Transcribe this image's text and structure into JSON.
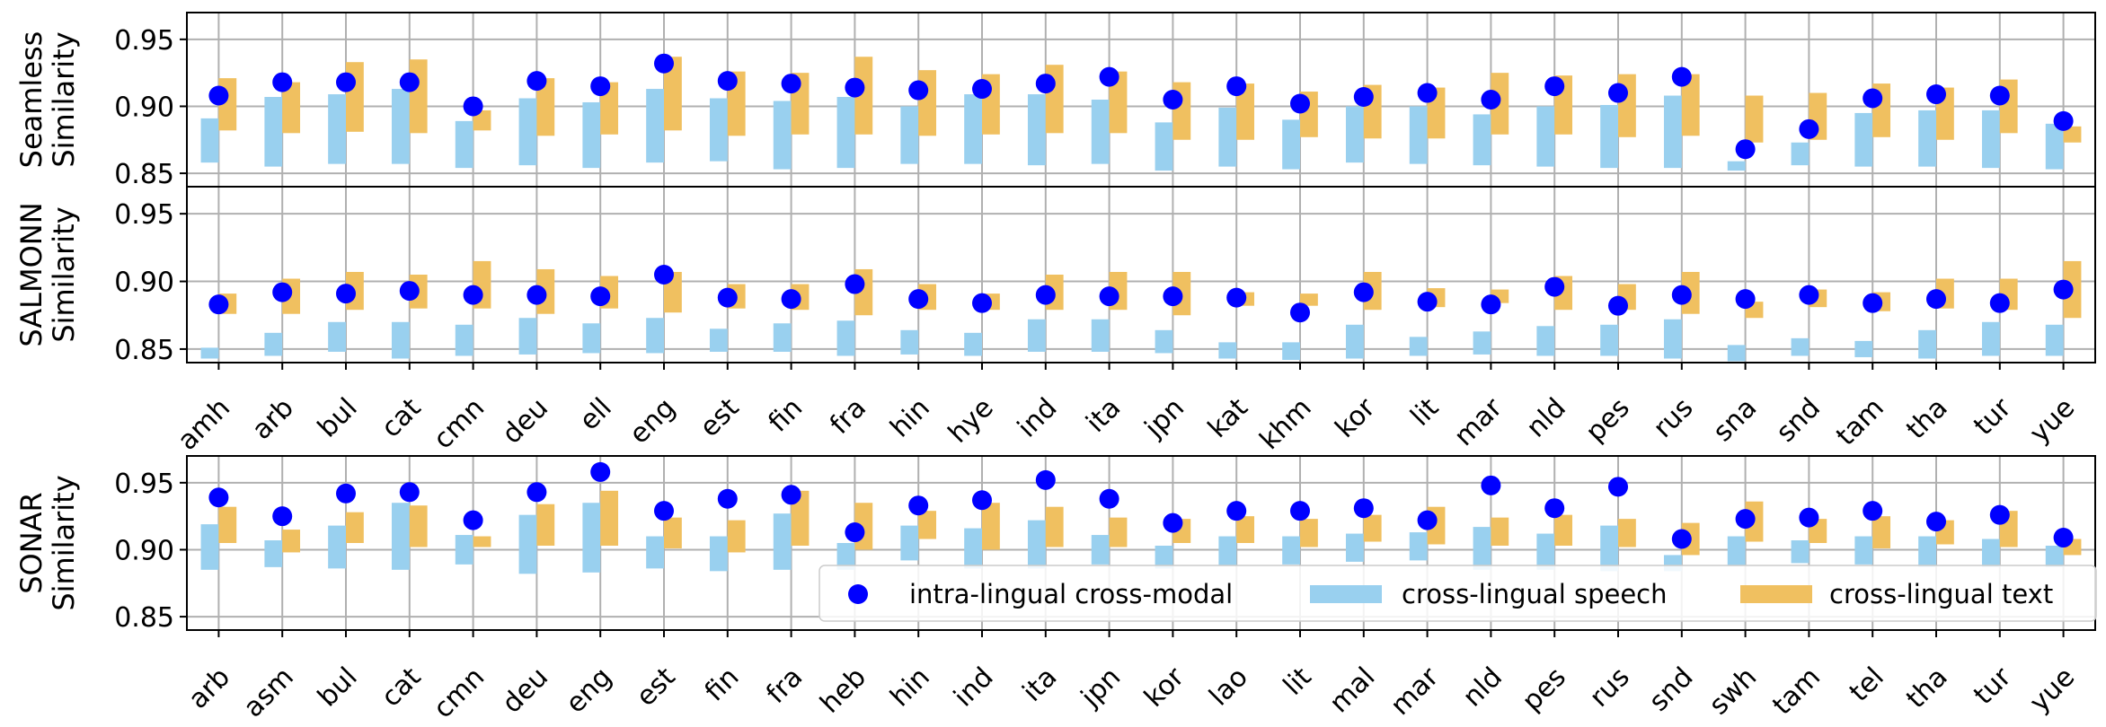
{
  "colors": {
    "dot": "#0000ff",
    "speech": "#99d0ef",
    "text": "#f0c060",
    "grid": "#b0b0b0"
  },
  "legend": {
    "dot_label": "intra-lingual cross-modal",
    "speech_label": "cross-lingual speech",
    "text_label": "cross-lingual text"
  },
  "chart_data": [
    {
      "type": "range-bar+scatter",
      "panel": "Seamless",
      "ylabel": [
        "Seamless",
        "Similarity"
      ],
      "ylim": [
        0.84,
        0.97
      ],
      "yticks": [
        "0.85",
        "0.90",
        "0.95"
      ],
      "categories": [
        "amh",
        "arb",
        "bul",
        "cat",
        "cmn",
        "deu",
        "ell",
        "eng",
        "est",
        "fin",
        "fra",
        "hin",
        "hye",
        "ind",
        "ita",
        "jpn",
        "kat",
        "khm",
        "kor",
        "lit",
        "mar",
        "nld",
        "pes",
        "rus",
        "sna",
        "snd",
        "tam",
        "tha",
        "tur",
        "yue"
      ],
      "intra_lingual_cross_modal": [
        0.908,
        0.918,
        0.918,
        0.918,
        0.9,
        0.919,
        0.915,
        0.932,
        0.919,
        0.917,
        0.914,
        0.912,
        0.913,
        0.917,
        0.922,
        0.905,
        0.915,
        0.902,
        0.907,
        0.91,
        0.905,
        0.915,
        0.91,
        0.922,
        0.868,
        0.883,
        0.906,
        0.909,
        0.908,
        0.889
      ],
      "cross_lingual_speech_range": [
        [
          0.858,
          0.891
        ],
        [
          0.855,
          0.907
        ],
        [
          0.857,
          0.909
        ],
        [
          0.857,
          0.913
        ],
        [
          0.854,
          0.889
        ],
        [
          0.856,
          0.906
        ],
        [
          0.854,
          0.903
        ],
        [
          0.858,
          0.913
        ],
        [
          0.859,
          0.906
        ],
        [
          0.853,
          0.904
        ],
        [
          0.854,
          0.907
        ],
        [
          0.857,
          0.9
        ],
        [
          0.857,
          0.909
        ],
        [
          0.856,
          0.909
        ],
        [
          0.857,
          0.905
        ],
        [
          0.852,
          0.888
        ],
        [
          0.855,
          0.899
        ],
        [
          0.853,
          0.89
        ],
        [
          0.858,
          0.9
        ],
        [
          0.857,
          0.9
        ],
        [
          0.856,
          0.894
        ],
        [
          0.855,
          0.9
        ],
        [
          0.854,
          0.901
        ],
        [
          0.854,
          0.908
        ],
        [
          0.852,
          0.859
        ],
        [
          0.856,
          0.873
        ],
        [
          0.855,
          0.895
        ],
        [
          0.855,
          0.897
        ],
        [
          0.854,
          0.897
        ],
        [
          0.853,
          0.887
        ]
      ],
      "cross_lingual_text_range": [
        [
          0.882,
          0.921
        ],
        [
          0.88,
          0.918
        ],
        [
          0.881,
          0.933
        ],
        [
          0.88,
          0.935
        ],
        [
          0.882,
          0.897
        ],
        [
          0.878,
          0.921
        ],
        [
          0.879,
          0.918
        ],
        [
          0.882,
          0.937
        ],
        [
          0.878,
          0.926
        ],
        [
          0.879,
          0.925
        ],
        [
          0.879,
          0.937
        ],
        [
          0.878,
          0.927
        ],
        [
          0.879,
          0.924
        ],
        [
          0.88,
          0.931
        ],
        [
          0.88,
          0.926
        ],
        [
          0.875,
          0.918
        ],
        [
          0.875,
          0.917
        ],
        [
          0.877,
          0.911
        ],
        [
          0.876,
          0.916
        ],
        [
          0.876,
          0.914
        ],
        [
          0.879,
          0.925
        ],
        [
          0.879,
          0.923
        ],
        [
          0.877,
          0.924
        ],
        [
          0.878,
          0.924
        ],
        [
          0.873,
          0.908
        ],
        [
          0.875,
          0.91
        ],
        [
          0.877,
          0.917
        ],
        [
          0.875,
          0.914
        ],
        [
          0.88,
          0.92
        ],
        [
          0.873,
          0.885
        ]
      ]
    },
    {
      "type": "range-bar+scatter",
      "panel": "SALMONN",
      "ylabel": [
        "SALMONN",
        "Similarity"
      ],
      "ylim": [
        0.84,
        0.97
      ],
      "yticks": [
        "0.85",
        "0.90",
        "0.95"
      ],
      "categories": [
        "amh",
        "arb",
        "bul",
        "cat",
        "cmn",
        "deu",
        "ell",
        "eng",
        "est",
        "fin",
        "fra",
        "hin",
        "hye",
        "ind",
        "ita",
        "jpn",
        "kat",
        "khm",
        "kor",
        "lit",
        "mar",
        "nld",
        "pes",
        "rus",
        "sna",
        "snd",
        "tam",
        "tha",
        "tur",
        "yue"
      ],
      "intra_lingual_cross_modal": [
        0.883,
        0.892,
        0.891,
        0.893,
        0.89,
        0.89,
        0.889,
        0.905,
        0.888,
        0.887,
        0.898,
        0.887,
        0.884,
        0.89,
        0.889,
        0.889,
        0.888,
        0.877,
        0.892,
        0.885,
        0.883,
        0.896,
        0.882,
        0.89,
        0.887,
        0.89,
        0.884,
        0.887,
        0.884,
        0.894
      ],
      "cross_lingual_speech_range": [
        [
          0.843,
          0.851
        ],
        [
          0.845,
          0.862
        ],
        [
          0.848,
          0.87
        ],
        [
          0.843,
          0.87
        ],
        [
          0.845,
          0.868
        ],
        [
          0.846,
          0.873
        ],
        [
          0.847,
          0.869
        ],
        [
          0.847,
          0.873
        ],
        [
          0.848,
          0.865
        ],
        [
          0.848,
          0.869
        ],
        [
          0.845,
          0.871
        ],
        [
          0.846,
          0.864
        ],
        [
          0.845,
          0.862
        ],
        [
          0.848,
          0.872
        ],
        [
          0.848,
          0.872
        ],
        [
          0.847,
          0.864
        ],
        [
          0.843,
          0.855
        ],
        [
          0.842,
          0.855
        ],
        [
          0.843,
          0.868
        ],
        [
          0.845,
          0.859
        ],
        [
          0.846,
          0.863
        ],
        [
          0.845,
          0.867
        ],
        [
          0.845,
          0.868
        ],
        [
          0.843,
          0.872
        ],
        [
          0.841,
          0.853
        ],
        [
          0.845,
          0.858
        ],
        [
          0.844,
          0.856
        ],
        [
          0.843,
          0.864
        ],
        [
          0.845,
          0.87
        ],
        [
          0.845,
          0.868
        ]
      ],
      "cross_lingual_text_range": [
        [
          0.876,
          0.891
        ],
        [
          0.876,
          0.902
        ],
        [
          0.879,
          0.907
        ],
        [
          0.88,
          0.905
        ],
        [
          0.88,
          0.915
        ],
        [
          0.876,
          0.909
        ],
        [
          0.88,
          0.904
        ],
        [
          0.877,
          0.907
        ],
        [
          0.88,
          0.898
        ],
        [
          0.879,
          0.898
        ],
        [
          0.875,
          0.909
        ],
        [
          0.879,
          0.898
        ],
        [
          0.879,
          0.891
        ],
        [
          0.879,
          0.905
        ],
        [
          0.879,
          0.907
        ],
        [
          0.875,
          0.907
        ],
        [
          0.882,
          0.892
        ],
        [
          0.882,
          0.891
        ],
        [
          0.879,
          0.907
        ],
        [
          0.881,
          0.895
        ],
        [
          0.884,
          0.894
        ],
        [
          0.879,
          0.904
        ],
        [
          0.879,
          0.898
        ],
        [
          0.876,
          0.907
        ],
        [
          0.873,
          0.885
        ],
        [
          0.881,
          0.894
        ],
        [
          0.878,
          0.892
        ],
        [
          0.88,
          0.902
        ],
        [
          0.879,
          0.902
        ],
        [
          0.873,
          0.915
        ]
      ]
    },
    {
      "type": "range-bar+scatter",
      "panel": "SONAR",
      "ylabel": [
        "SONAR",
        "Similarity"
      ],
      "ylim": [
        0.84,
        0.97
      ],
      "yticks": [
        "0.85",
        "0.90",
        "0.95"
      ],
      "categories": [
        "arb",
        "asm",
        "bul",
        "cat",
        "cmn",
        "deu",
        "eng",
        "est",
        "fin",
        "fra",
        "heb",
        "hin",
        "ind",
        "ita",
        "jpn",
        "kor",
        "lao",
        "lit",
        "mal",
        "mar",
        "nld",
        "pes",
        "rus",
        "snd",
        "swh",
        "tam",
        "tel",
        "tha",
        "tur",
        "yue"
      ],
      "intra_lingual_cross_modal": [
        0.939,
        0.925,
        0.942,
        0.943,
        0.922,
        0.943,
        0.958,
        0.929,
        0.938,
        0.941,
        0.913,
        0.933,
        0.937,
        0.952,
        0.938,
        0.92,
        0.929,
        0.929,
        0.931,
        0.922,
        0.948,
        0.931,
        0.947,
        0.908,
        0.923,
        0.924,
        0.929,
        0.921,
        0.926,
        0.909
      ],
      "cross_lingual_speech_range": [
        [
          0.885,
          0.919
        ],
        [
          0.887,
          0.907
        ],
        [
          0.886,
          0.918
        ],
        [
          0.885,
          0.935
        ],
        [
          0.889,
          0.911
        ],
        [
          0.882,
          0.926
        ],
        [
          0.883,
          0.935
        ],
        [
          0.886,
          0.91
        ],
        [
          0.884,
          0.91
        ],
        [
          0.885,
          0.927
        ],
        [
          0.885,
          0.905
        ],
        [
          0.892,
          0.918
        ],
        [
          0.886,
          0.916
        ],
        [
          0.886,
          0.922
        ],
        [
          0.889,
          0.911
        ],
        [
          0.886,
          0.903
        ],
        [
          0.888,
          0.91
        ],
        [
          0.889,
          0.91
        ],
        [
          0.891,
          0.912
        ],
        [
          0.892,
          0.913
        ],
        [
          0.885,
          0.917
        ],
        [
          0.885,
          0.912
        ],
        [
          0.884,
          0.918
        ],
        [
          0.884,
          0.896
        ],
        [
          0.888,
          0.91
        ],
        [
          0.89,
          0.907
        ],
        [
          0.889,
          0.91
        ],
        [
          0.887,
          0.91
        ],
        [
          0.887,
          0.908
        ],
        [
          0.887,
          0.903
        ]
      ],
      "cross_lingual_text_range": [
        [
          0.905,
          0.932
        ],
        [
          0.898,
          0.915
        ],
        [
          0.905,
          0.928
        ],
        [
          0.902,
          0.933
        ],
        [
          0.902,
          0.91
        ],
        [
          0.903,
          0.934
        ],
        [
          0.903,
          0.944
        ],
        [
          0.901,
          0.924
        ],
        [
          0.898,
          0.922
        ],
        [
          0.903,
          0.944
        ],
        [
          0.9,
          0.935
        ],
        [
          0.908,
          0.929
        ],
        [
          0.9,
          0.935
        ],
        [
          0.902,
          0.932
        ],
        [
          0.902,
          0.924
        ],
        [
          0.905,
          0.923
        ],
        [
          0.905,
          0.925
        ],
        [
          0.902,
          0.923
        ],
        [
          0.906,
          0.926
        ],
        [
          0.904,
          0.932
        ],
        [
          0.903,
          0.924
        ],
        [
          0.903,
          0.926
        ],
        [
          0.902,
          0.923
        ],
        [
          0.896,
          0.92
        ],
        [
          0.906,
          0.936
        ],
        [
          0.905,
          0.923
        ],
        [
          0.901,
          0.925
        ],
        [
          0.904,
          0.922
        ],
        [
          0.902,
          0.929
        ],
        [
          0.896,
          0.908
        ]
      ]
    }
  ]
}
